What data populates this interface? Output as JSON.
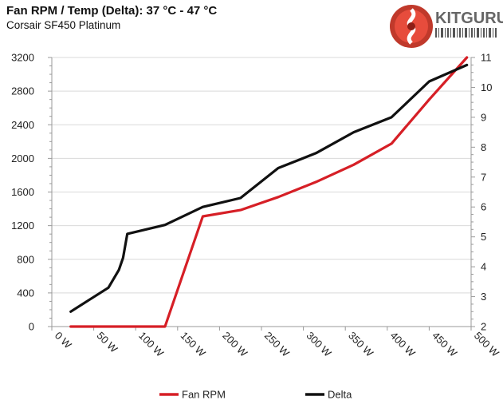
{
  "title": "Fan RPM / Temp (Delta): 37 °C - 47 °C",
  "subtitle": "Corsair SF450 Platinum",
  "logo": {
    "text": "KITGURU",
    "icon": "kitguru-logo-icon"
  },
  "colors": {
    "fan_rpm": "#d61f26",
    "delta": "#111111",
    "grid": "#d9d9d9",
    "axis": "#999999"
  },
  "chart_data": {
    "type": "line",
    "xlabel": "",
    "ylabel": "",
    "y2label": "",
    "x_ticks": [
      "0 W",
      "50 W",
      "100 W",
      "150 W",
      "200 W",
      "250 W",
      "300 W",
      "350 W",
      "400 W",
      "450 W",
      "500 W"
    ],
    "x_range": [
      0,
      500
    ],
    "ylim": [
      0,
      3200
    ],
    "y_ticks": [
      "0",
      "400",
      "800",
      "1200",
      "1600",
      "2000",
      "2400",
      "2800",
      "3200"
    ],
    "y2lim": [
      2,
      11
    ],
    "y2_ticks": [
      "2",
      "3",
      "4",
      "5",
      "6",
      "7",
      "8",
      "9",
      "10",
      "11"
    ],
    "grid": "horizontal",
    "legend_position": "bottom",
    "series": [
      {
        "name": "Fan RPM",
        "axis": "left",
        "x": [
          22.5,
          45,
          67.5,
          90,
          112.5,
          135,
          180,
          225,
          270,
          315,
          360,
          405,
          450,
          495
        ],
        "values": [
          0,
          0,
          0,
          0,
          0,
          0,
          1310,
          1385,
          1540,
          1720,
          1925,
          2175,
          2700,
          3200
        ]
      },
      {
        "name": "Delta",
        "axis": "right",
        "x": [
          22.5,
          45,
          67.5,
          80,
          85,
          90,
          135,
          180,
          225,
          270,
          315,
          360,
          405,
          450,
          495
        ],
        "values": [
          2.5,
          2.9,
          3.3,
          3.9,
          4.3,
          5.1,
          5.4,
          6.0,
          6.3,
          7.3,
          7.8,
          8.5,
          9.0,
          10.2,
          10.75
        ]
      }
    ]
  }
}
